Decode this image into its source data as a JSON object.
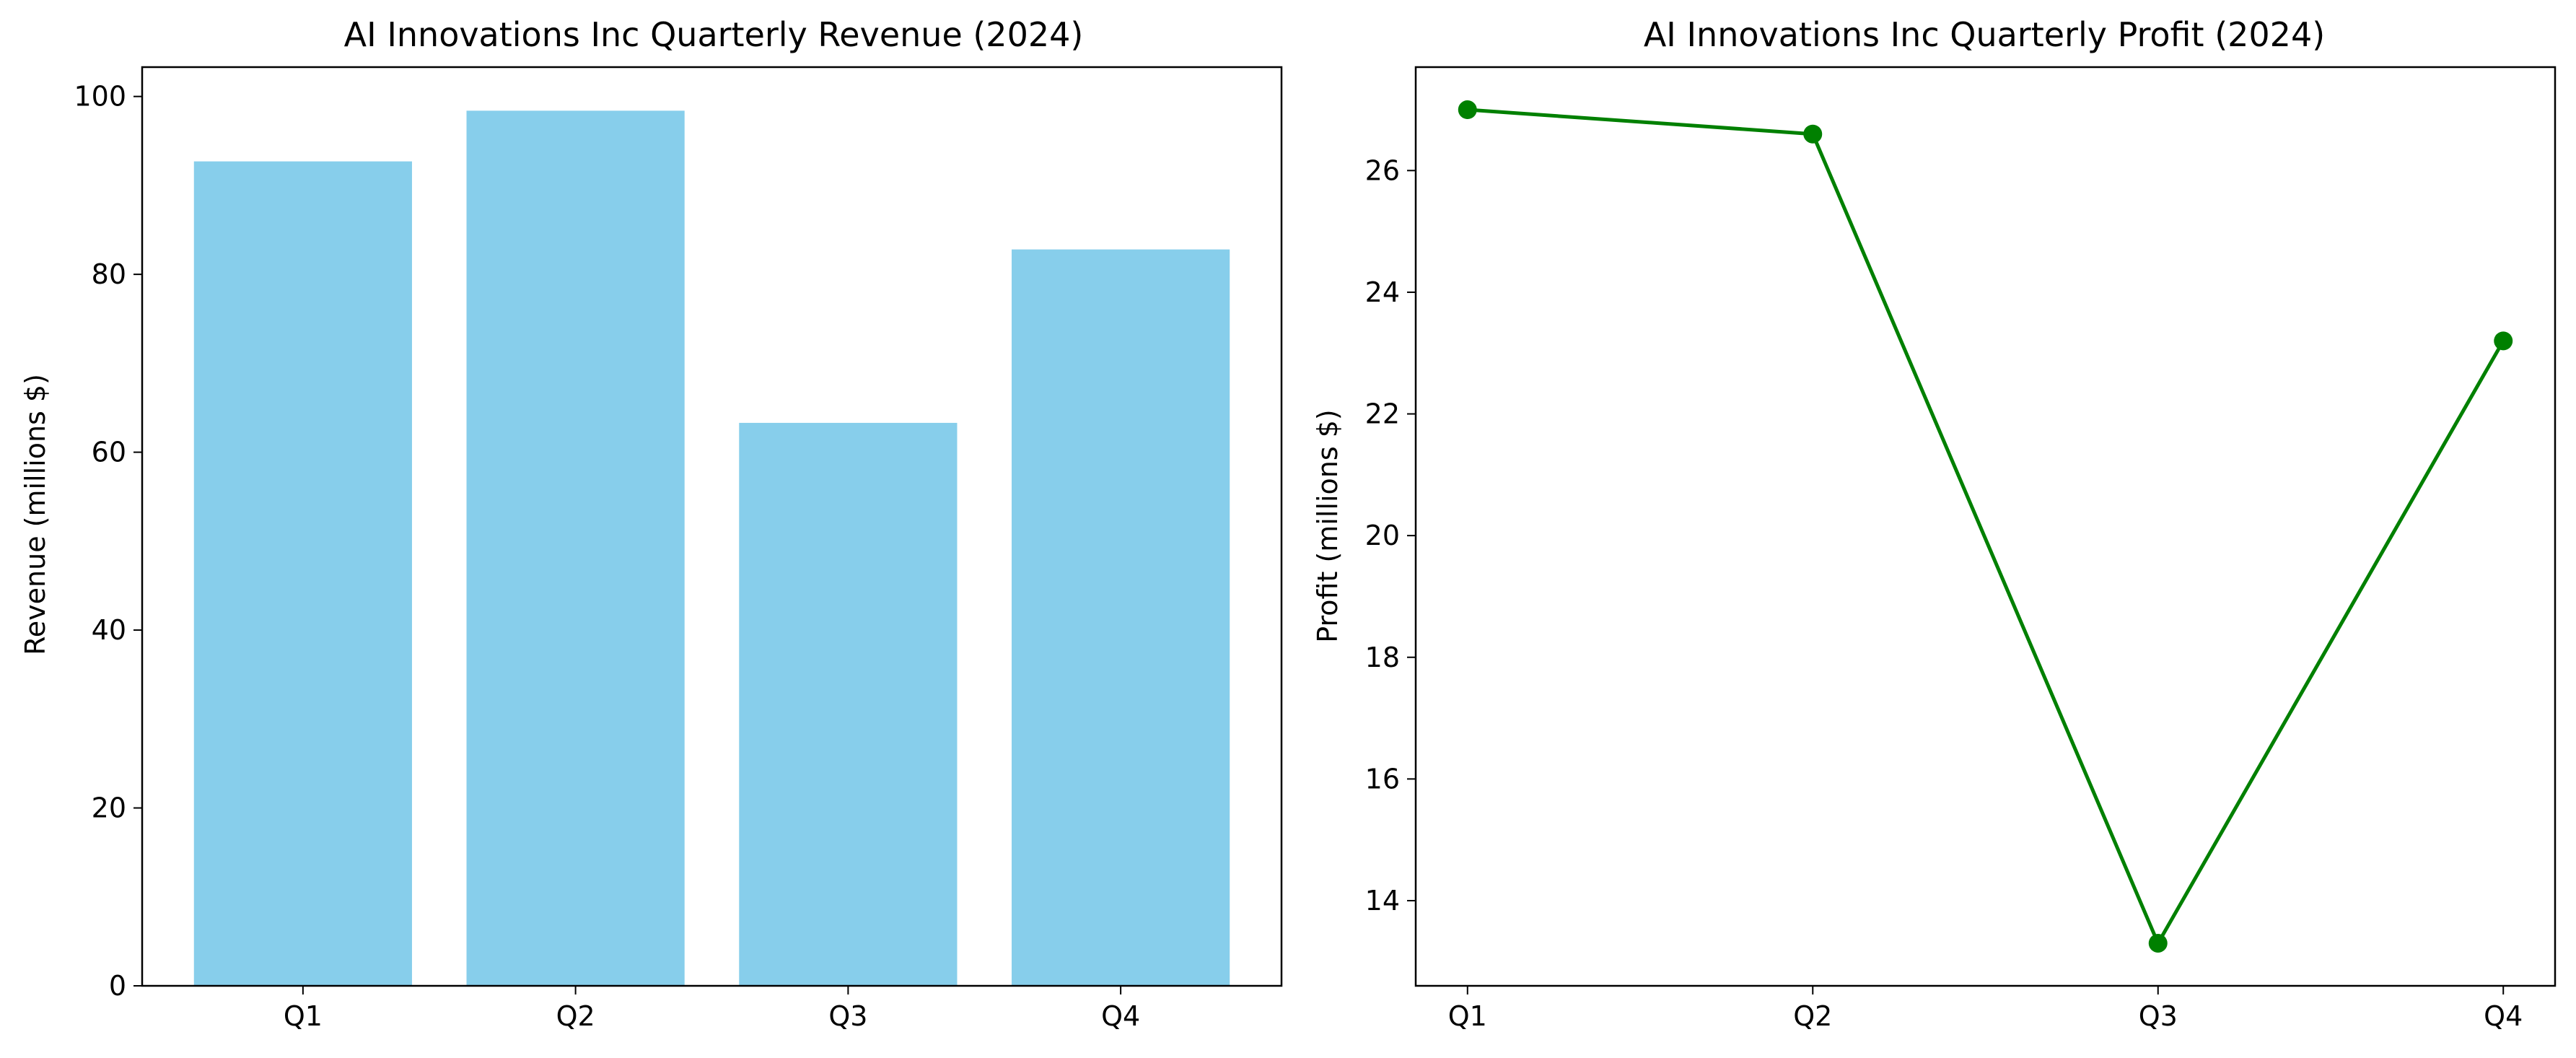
{
  "chart_data": [
    {
      "type": "bar",
      "title": "AI Innovations Inc Quarterly Revenue (2024)",
      "xlabel": "",
      "ylabel": "Revenue (millions $)",
      "categories": [
        "Q1",
        "Q2",
        "Q3",
        "Q4"
      ],
      "values": [
        92.7,
        98.4,
        63.3,
        82.8
      ],
      "ylim": [
        0,
        103.3
      ],
      "yticks": [
        0,
        20,
        40,
        60,
        80,
        100
      ],
      "color": "#87CEEB",
      "grid": false
    },
    {
      "type": "line",
      "title": "AI Innovations Inc Quarterly Profit (2024)",
      "xlabel": "",
      "ylabel": "Profit (millions $)",
      "categories": [
        "Q1",
        "Q2",
        "Q3",
        "Q4"
      ],
      "values": [
        27.0,
        26.6,
        13.3,
        23.2
      ],
      "ylim": [
        12.6,
        27.7
      ],
      "yticks": [
        14,
        16,
        18,
        20,
        22,
        24,
        26
      ],
      "color": "#008000",
      "marker": "circle",
      "grid": false
    }
  ]
}
